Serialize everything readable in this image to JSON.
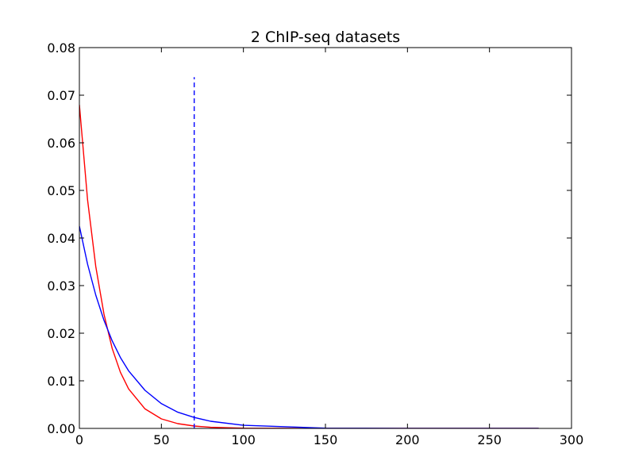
{
  "chart_data": {
    "type": "line",
    "title": "2 ChIP-seq datasets",
    "xlabel": "",
    "ylabel": "",
    "xlim": [
      0,
      300
    ],
    "ylim": [
      0,
      0.08
    ],
    "x_ticks": [
      0,
      50,
      100,
      150,
      200,
      250,
      300
    ],
    "x_tick_labels": [
      "0",
      "50",
      "100",
      "150",
      "200",
      "250",
      "300"
    ],
    "y_ticks": [
      0,
      0.01,
      0.02,
      0.03,
      0.04,
      0.05,
      0.06,
      0.07,
      0.08
    ],
    "y_tick_labels": [
      "0.00",
      "0.01",
      "0.02",
      "0.03",
      "0.04",
      "0.05",
      "0.06",
      "0.07",
      "0.08"
    ],
    "grid": false,
    "series": [
      {
        "color": "#ff0000",
        "style": "solid",
        "x": [
          0,
          5,
          10,
          15,
          20,
          25,
          30,
          40,
          50,
          60,
          70,
          80,
          100,
          150,
          200,
          250,
          280
        ],
        "y": [
          0.068,
          0.048,
          0.034,
          0.024,
          0.0168,
          0.0118,
          0.0083,
          0.0041,
          0.002,
          0.001,
          0.0005,
          0.00024,
          6e-05,
          0.0,
          0.0,
          0.0,
          0.0
        ]
      },
      {
        "color": "#0000ff",
        "style": "solid",
        "x": [
          0,
          5,
          10,
          15,
          20,
          25,
          30,
          40,
          50,
          60,
          70,
          80,
          100,
          150,
          200,
          250,
          280
        ],
        "y": [
          0.0425,
          0.0345,
          0.028,
          0.0227,
          0.0184,
          0.0149,
          0.0121,
          0.008,
          0.0052,
          0.0034,
          0.0023,
          0.0015,
          0.00065,
          6e-05,
          0.0,
          0.0,
          0.0
        ]
      }
    ],
    "vlines": [
      {
        "x": 70,
        "y_from": 0,
        "y_to": 0.0738,
        "color": "#0000ff",
        "style": "dashed"
      }
    ]
  }
}
